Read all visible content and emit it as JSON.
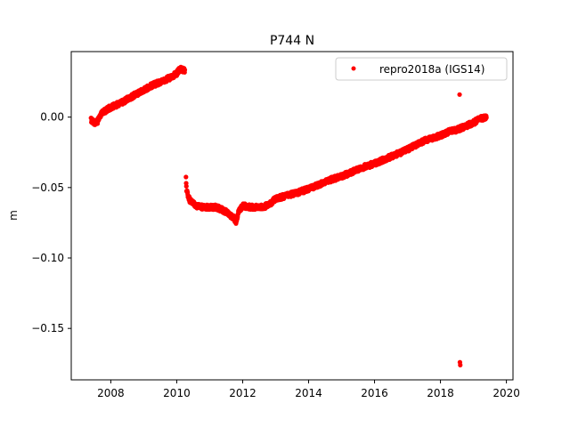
{
  "chart_data": {
    "type": "scatter",
    "title": "P744 N",
    "xlabel": "",
    "ylabel": "m",
    "xlim": [
      2006.8,
      2020.2
    ],
    "ylim": [
      -0.1865,
      0.0465
    ],
    "xticks": [
      2008,
      2010,
      2012,
      2014,
      2016,
      2018,
      2020
    ],
    "xtick_labels": [
      "2008",
      "2010",
      "2012",
      "2014",
      "2016",
      "2018",
      "2020"
    ],
    "yticks": [
      0.0,
      -0.05,
      -0.1,
      -0.15
    ],
    "ytick_labels": [
      "0.00",
      "−0.05",
      "−0.10",
      "−0.15"
    ],
    "legend": {
      "position": "top-right",
      "entries": [
        "repro2018a (IGS14)"
      ]
    },
    "grid": false,
    "series": [
      {
        "name": "repro2018a (IGS14)",
        "color": "#ff0000",
        "marker": "circle",
        "segments": [
          {
            "x": [
              2007.4,
              2007.5,
              2007.6,
              2007.7,
              2007.8,
              2008.0,
              2008.3,
              2008.6,
              2008.9,
              2009.2,
              2009.5,
              2009.8,
              2010.0,
              2010.1,
              2010.25
            ],
            "y": [
              -0.002,
              -0.004,
              -0.003,
              0.002,
              0.004,
              0.007,
              0.01,
              0.014,
              0.018,
              0.022,
              0.025,
              0.028,
              0.031,
              0.034,
              0.033
            ]
          },
          {
            "x": [
              2010.28,
              2010.3,
              2010.35,
              2010.4,
              2010.5,
              2010.6,
              2010.8,
              2011.0,
              2011.2,
              2011.4,
              2011.55,
              2011.7,
              2011.8,
              2011.9,
              2012.0,
              2012.3,
              2012.6,
              2012.8,
              2013.0,
              2013.3,
              2013.6,
              2014.0,
              2014.3,
              2014.6,
              2015.0,
              2015.3,
              2015.6,
              2016.0,
              2016.3,
              2016.6,
              2017.0,
              2017.3,
              2017.6,
              2018.0,
              2018.3,
              2018.5,
              2018.7,
              2019.0,
              2019.2,
              2019.4
            ],
            "y": [
              -0.044,
              -0.052,
              -0.056,
              -0.059,
              -0.061,
              -0.063,
              -0.064,
              -0.064,
              -0.064,
              -0.066,
              -0.068,
              -0.071,
              -0.074,
              -0.066,
              -0.063,
              -0.064,
              -0.064,
              -0.062,
              -0.058,
              -0.056,
              -0.054,
              -0.051,
              -0.048,
              -0.045,
              -0.042,
              -0.039,
              -0.036,
              -0.033,
              -0.03,
              -0.027,
              -0.023,
              -0.019,
              -0.016,
              -0.013,
              -0.01,
              -0.009,
              -0.007,
              -0.004,
              -0.001,
              0.0
            ]
          },
          {
            "x": [
              2018.58,
              2018.59,
              2018.6
            ],
            "y": [
              0.016,
              -0.174,
              -0.176
            ]
          }
        ]
      }
    ]
  }
}
